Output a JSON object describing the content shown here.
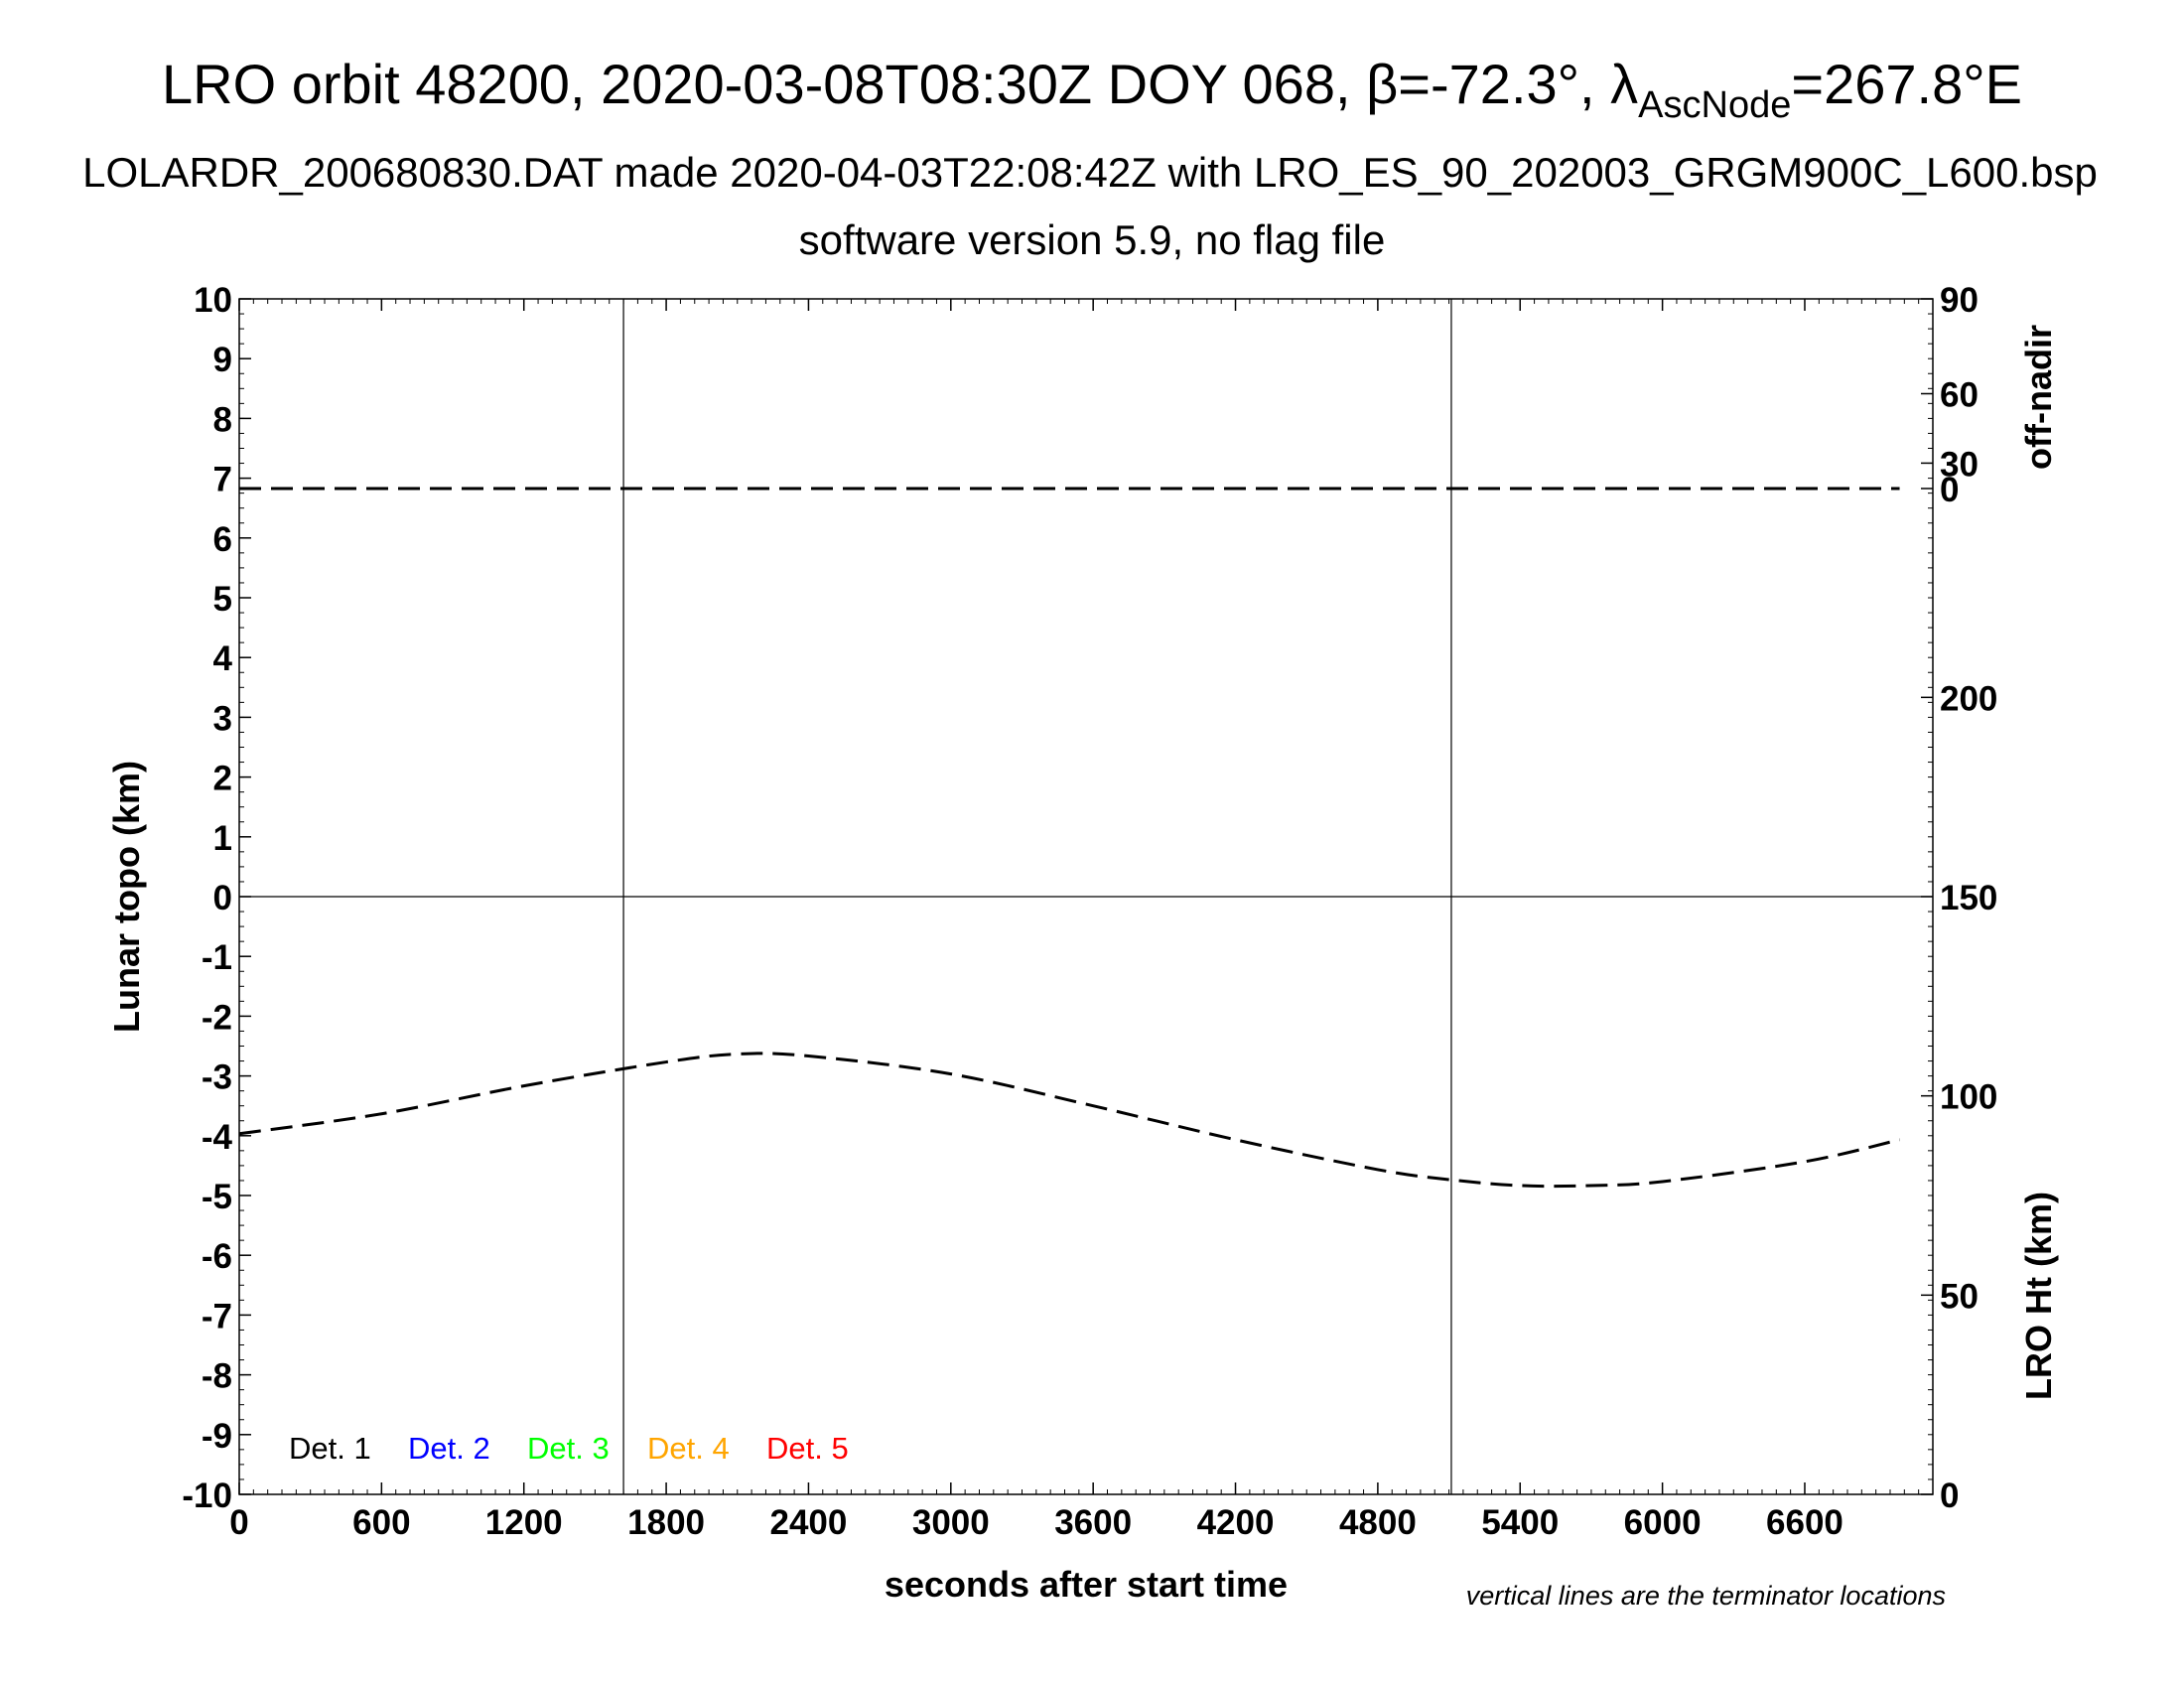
{
  "title": {
    "prefix": "LRO orbit 48200, 2020-03-08T08:30Z DOY 068, ",
    "beta": "β=-72.3°, ",
    "lambda": "λ",
    "lambda_sub": "AscNode",
    "lambda_value": "=267.8°E"
  },
  "subtitle1": "LOLARDR_200680830.DAT made 2020-04-03T22:08:42Z with LRO_ES_90_202003_GRGM900C_L600.bsp",
  "subtitle2": "software version 5.9, no flag file",
  "note": "vertical lines are the terminator locations",
  "chart_data": {
    "type": "line",
    "xlabel": "seconds after start time",
    "ylabel_left": "Lunar topo (km)",
    "ylabel_right_top": "off-nadir",
    "ylabel_right_bottom": "LRO Ht (km)",
    "xlim": [
      0,
      7140
    ],
    "ylim_left": [
      -10,
      10
    ],
    "x_ticks": [
      0,
      600,
      1200,
      1800,
      2400,
      3000,
      3600,
      4200,
      4800,
      5400,
      6000,
      6600
    ],
    "y_ticks_left": [
      10,
      9,
      8,
      7,
      6,
      5,
      4,
      3,
      2,
      1,
      0,
      -1,
      -2,
      -3,
      -4,
      -5,
      -6,
      -7,
      -8,
      -9,
      -10
    ],
    "off_nadir_ticks": [
      90,
      60,
      30,
      0
    ],
    "lro_ht_ticks": [
      200,
      150,
      100,
      50,
      0
    ],
    "lro_ht_range_km": [
      0,
      300
    ],
    "terminator_lines_x": [
      1620,
      5110
    ],
    "legend": [
      {
        "label": "Det. 1",
        "color": "#000000"
      },
      {
        "label": "Det. 2",
        "color": "#0000ff"
      },
      {
        "label": "Det. 3",
        "color": "#00ff00"
      },
      {
        "label": "Det. 4",
        "color": "#ffa500"
      },
      {
        "label": "Det. 5",
        "color": "#ff0000"
      }
    ],
    "series": [
      {
        "axis": "off-nadir",
        "style": "dashed",
        "color": "#000000",
        "x": [
          0,
          1800,
          2000,
          2100,
          7000
        ],
        "y": [
          0.5,
          0.5,
          0.8,
          0.5,
          0.5
        ]
      },
      {
        "axis": "lro-ht",
        "style": "dashed",
        "color": "#000000",
        "x": [
          0,
          600,
          1200,
          1800,
          2100,
          2400,
          3000,
          3600,
          4200,
          4800,
          5100,
          5400,
          5700,
          6000,
          6600,
          7000
        ],
        "y": [
          90.5,
          95.5,
          102.5,
          108.5,
          110.5,
          110,
          105.5,
          97.5,
          89,
          81.5,
          79,
          77.5,
          77.5,
          78.5,
          83.5,
          89
        ]
      }
    ]
  }
}
